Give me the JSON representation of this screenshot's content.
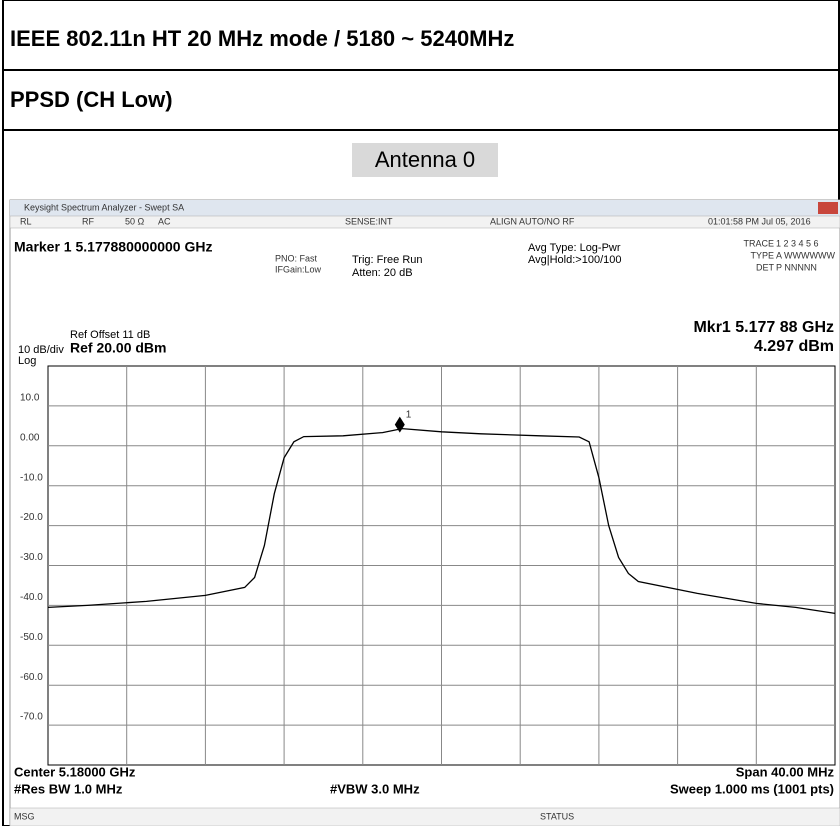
{
  "rows": [
    "IEEE 802.11n HT 20 MHz mode / 5180 ~ 5240MHz",
    "PPSD (CH Low)",
    "Antenna 0"
  ],
  "window": {
    "title": "Keysight Spectrum Analyzer - Swept SA",
    "rl": "RL",
    "rf": "RF",
    "ohm": "50 Ω",
    "ac": "AC",
    "sense": "SENSE:INT",
    "align": "ALIGN AUTO/NO RF",
    "time": "01:01:58 PM Jul 05, 2016",
    "marker": "Marker 1 5.177880000000 GHz",
    "pno": "PNO: Fast",
    "gain": "IFGain:Low",
    "trig": "Trig: Free Run",
    "atten": "Atten: 20 dB",
    "avg_type": "Avg Type: Log-Pwr",
    "avg_hold": "Avg|Hold:>100/100",
    "trace": "TRACE",
    "trace_val": "1 2 3 4 5 6",
    "type": "TYPE",
    "type_val": "A WWWWWW",
    "det": "DET",
    "det_val": "P NNNNN",
    "ref_offset": "Ref Offset 11 dB",
    "scale": "10 dB/div",
    "ref": "Ref 20.00 dBm",
    "log": "Log",
    "mkr_freq": "Mkr1 5.177 88 GHz",
    "mkr_level": "4.297 dBm",
    "center": "Center 5.18000 GHz",
    "rbw": "#Res BW 1.0 MHz",
    "vbw": "#VBW 3.0 MHz",
    "span": "Span 40.00 MHz",
    "sweep": "Sweep  1.000 ms (1001 pts)",
    "msg": "MSG",
    "status": "STATUS"
  },
  "chart_data": {
    "type": "line",
    "color": "#000000",
    "x": [
      5.16,
      5.162,
      5.165,
      5.168,
      5.17,
      5.1705,
      5.171,
      5.1715,
      5.172,
      5.1725,
      5.173,
      5.175,
      5.177,
      5.178,
      5.18,
      5.182,
      5.185,
      5.187,
      5.1875,
      5.188,
      5.1885,
      5.189,
      5.1895,
      5.19,
      5.193,
      5.196,
      5.198,
      5.2
    ],
    "values": [
      -40.5,
      -40,
      -39,
      -37.5,
      -35.5,
      -33,
      -25,
      -12,
      -3,
      1,
      2.3,
      2.5,
      3.3,
      4.3,
      3.5,
      3,
      2.5,
      2.2,
      1,
      -8,
      -20,
      -28,
      -32,
      -34,
      -37,
      -39.5,
      -40.5,
      -42
    ],
    "marker": {
      "x": 5.17788,
      "y": 4.297,
      "label": "1"
    },
    "xlim": [
      5.16,
      5.2
    ],
    "xticks": [
      5.164,
      5.168,
      5.172,
      5.176,
      5.18,
      5.184,
      5.188,
      5.192,
      5.196
    ],
    "ylim": [
      -80,
      20
    ],
    "yticks": [
      {
        "value": 10,
        "label": "10.0"
      },
      {
        "value": 0,
        "label": "0.00"
      },
      {
        "value": -10,
        "label": "-10.0"
      },
      {
        "value": -20,
        "label": "-20.0"
      },
      {
        "value": -30,
        "label": "-30.0"
      },
      {
        "value": -40,
        "label": "-40.0"
      },
      {
        "value": -50,
        "label": "-50.0"
      },
      {
        "value": -60,
        "label": "-60.0"
      },
      {
        "value": -70,
        "label": "-70.0"
      }
    ],
    "grid": true
  }
}
